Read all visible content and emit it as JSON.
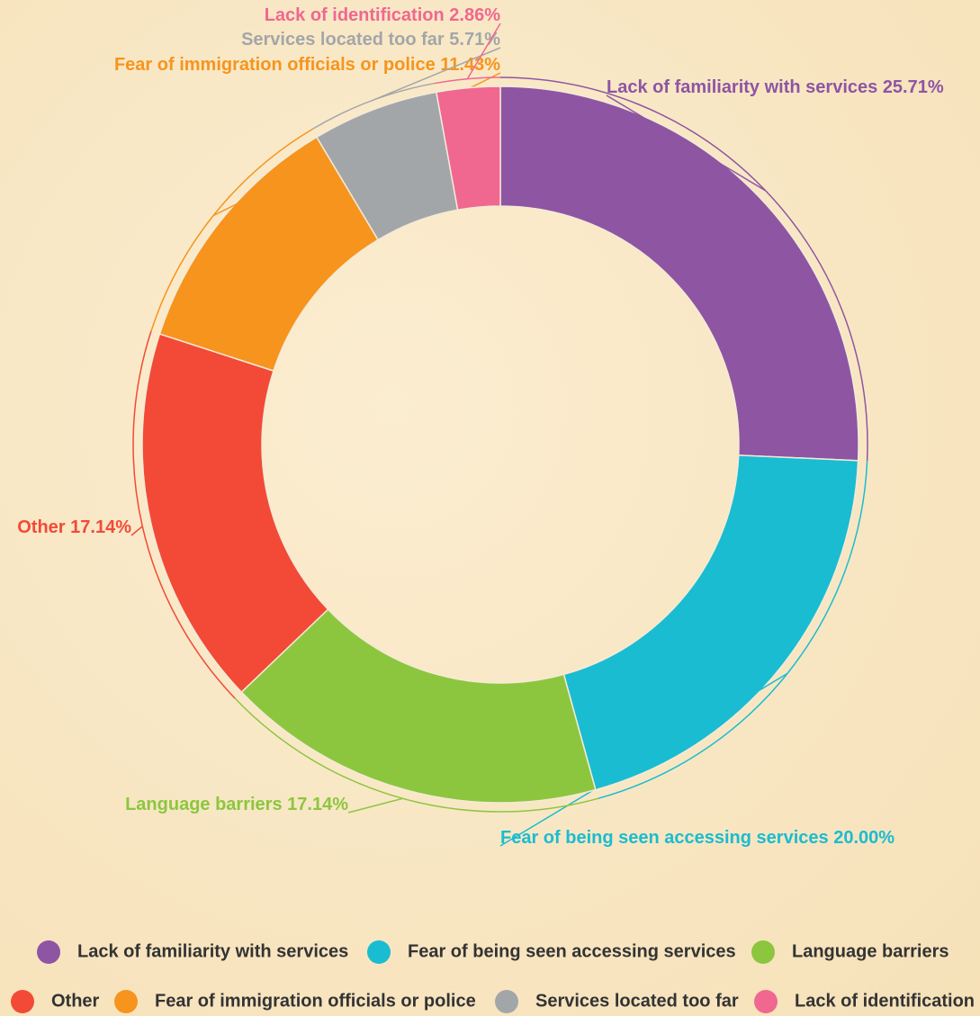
{
  "chart_data": {
    "type": "donut",
    "categories": [
      "Lack of familiarity with services",
      "Fear of being seen accessing services",
      "Language barriers",
      "Other",
      "Fear of immigration officials or police",
      "Services located too far",
      "Lack of identification"
    ],
    "values": [
      25.71,
      20.0,
      17.14,
      17.14,
      11.43,
      5.71,
      2.86
    ],
    "value_labels": [
      "25.71%",
      "20.00%",
      "17.14%",
      "17.14%",
      "11.43%",
      "5.71%",
      "2.86%"
    ],
    "colors": [
      "#8e55a3",
      "#1abcd1",
      "#8cc63f",
      "#f24a37",
      "#f7941d",
      "#a3a6a9",
      "#f06790"
    ],
    "legend": "bottom"
  }
}
